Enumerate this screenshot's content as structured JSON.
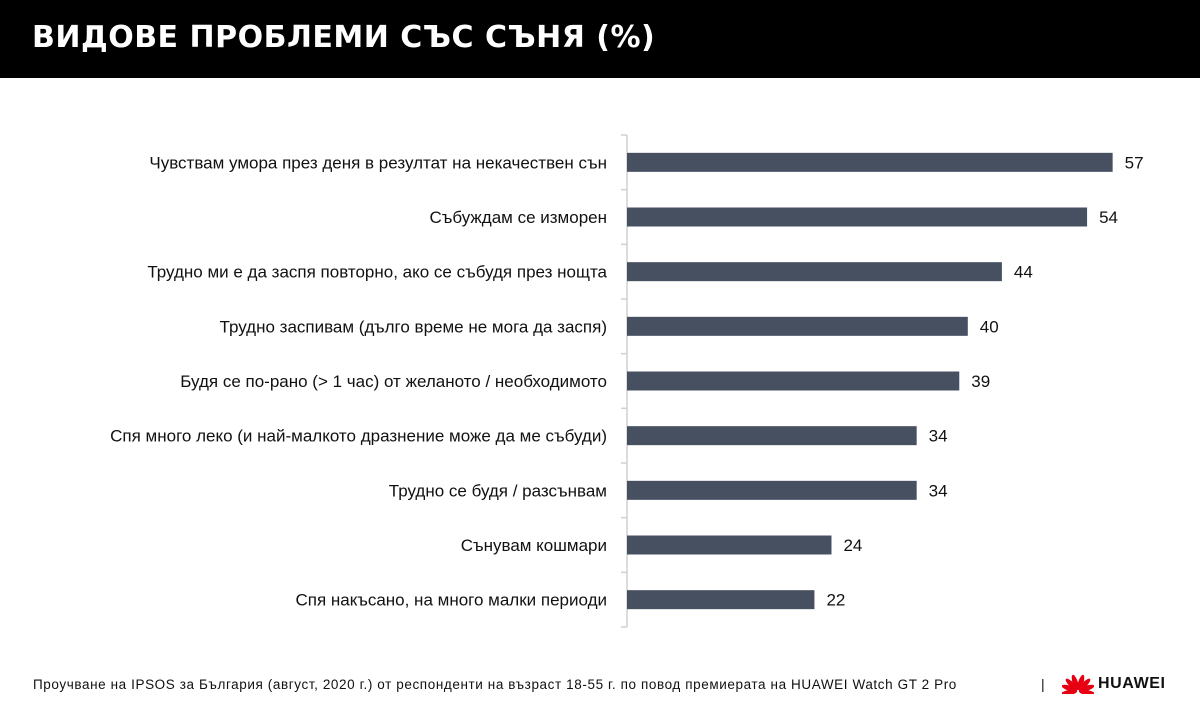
{
  "header": {
    "title": "ВИДОВЕ ПРОБЛЕМИ СЪС СЪНЯ (%)"
  },
  "chart_data": {
    "type": "bar",
    "orientation": "horizontal",
    "categories": [
      "Чувствам умора през деня в резултат на некачествен сън",
      "Събуждам се изморен",
      "Трудно ми е да заспя повторно, ако се събудя през нощта",
      "Трудно заспивам (дълго време не мога да заспя)",
      "Будя се по-рано (> 1 час) от желаното / необходимото",
      "Спя много леко (и най-малкото дразнение може да ме събуди)",
      "Трудно се будя / разсънвам",
      "Сънувам кошмари",
      "Спя накъсано, на много малки периоди"
    ],
    "values": [
      57,
      54,
      44,
      40,
      39,
      34,
      34,
      24,
      22
    ],
    "data_labels": true,
    "grid": false,
    "bar_color": "#475061",
    "axis_color": "#d0d0d0"
  },
  "footer": {
    "source": "Проучване на IPSOS за България (август, 2020 г.) от респонденти на възраст 18-55 г. по повод премиерата на HUAWEI Watch GT 2 Pro",
    "separator": "|",
    "brand": "HUAWEI",
    "logo_color": "#e60012"
  }
}
